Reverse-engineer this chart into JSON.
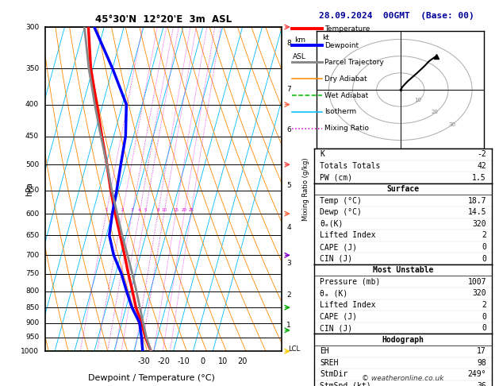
{
  "title_left": "45°30'N  12°20'E  3m  ASL",
  "title_right": "28.09.2024  00GMT  (Base: 00)",
  "xlabel": "Dewpoint / Temperature (°C)",
  "pressure_levels": [
    300,
    350,
    400,
    450,
    500,
    550,
    600,
    650,
    700,
    750,
    800,
    850,
    900,
    950,
    1000
  ],
  "xlim": [
    -35,
    40
  ],
  "xticks": [
    -30,
    -20,
    -10,
    0,
    10,
    20
  ],
  "temp_profile": {
    "pressure": [
      1000,
      950,
      900,
      850,
      800,
      750,
      700,
      650,
      600,
      550,
      500,
      450,
      400,
      350,
      300
    ],
    "temperature": [
      18.7,
      14.0,
      10.0,
      5.0,
      1.0,
      -3.5,
      -8.0,
      -13.0,
      -18.5,
      -24.0,
      -29.5,
      -36.0,
      -43.0,
      -51.0,
      -58.0
    ],
    "color": "#ff0000",
    "linewidth": 2.5
  },
  "dewpoint_profile": {
    "pressure": [
      1000,
      950,
      900,
      850,
      800,
      750,
      700,
      650,
      600,
      550,
      500,
      450,
      400,
      350,
      300
    ],
    "temperature": [
      14.5,
      12.0,
      9.0,
      3.0,
      -2.0,
      -7.0,
      -13.5,
      -18.5,
      -20.0,
      -21.0,
      -22.5,
      -24.0,
      -28.0,
      -40.0,
      -55.0
    ],
    "color": "#0000ff",
    "linewidth": 2.5
  },
  "parcel_profile": {
    "pressure": [
      1000,
      950,
      900,
      850,
      800,
      750,
      700,
      650,
      600,
      550,
      500,
      450,
      400,
      350,
      300
    ],
    "temperature": [
      18.7,
      14.5,
      10.8,
      7.0,
      3.0,
      -1.5,
      -6.5,
      -12.0,
      -17.5,
      -23.5,
      -29.5,
      -36.5,
      -44.0,
      -52.0,
      -60.0
    ],
    "color": "#888888",
    "linewidth": 2.0
  },
  "isotherm_color": "#00bbff",
  "dry_adiabat_color": "#ff8800",
  "wet_adiabat_color": "#00bb00",
  "mixing_ratio_color": "#dd00dd",
  "mixing_ratio_lines": [
    1,
    2,
    3,
    4,
    5,
    8,
    10,
    15,
    20,
    25
  ],
  "km_ticks": [
    1,
    2,
    3,
    4,
    5,
    6,
    7,
    8
  ],
  "km_pressures": [
    907,
    812,
    721,
    632,
    540,
    440,
    378,
    319
  ],
  "lcl_pressure": 975,
  "stats": {
    "K": -2,
    "Totals_Totals": 42,
    "PW_cm": 1.5,
    "Surf_Temp": 18.7,
    "Surf_Dewp": 14.5,
    "Surf_theta_e": 320,
    "Surf_LI": 2,
    "Surf_CAPE": 0,
    "Surf_CIN": 0,
    "MU_Pressure": 1007,
    "MU_theta_e": 320,
    "MU_LI": 2,
    "MU_CAPE": 0,
    "MU_CIN": 0,
    "EH": 17,
    "SREH": 98,
    "StmDir": 249,
    "StmSpd": 36
  }
}
